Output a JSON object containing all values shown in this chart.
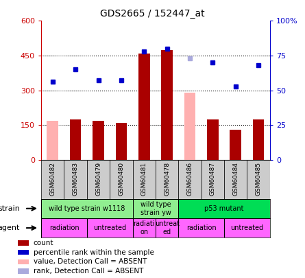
{
  "title": "GDS2665 / 152447_at",
  "samples": [
    "GSM60482",
    "GSM60483",
    "GSM60479",
    "GSM60480",
    "GSM60481",
    "GSM60478",
    "GSM60486",
    "GSM60487",
    "GSM60484",
    "GSM60485"
  ],
  "count_present": [
    null,
    175,
    168,
    160,
    460,
    475,
    null,
    175,
    130,
    175
  ],
  "count_absent": [
    168,
    null,
    null,
    null,
    null,
    null,
    290,
    null,
    null,
    null
  ],
  "rank_present": [
    56,
    65,
    57,
    57,
    78,
    80,
    null,
    70,
    53,
    68
  ],
  "rank_absent": [
    null,
    null,
    null,
    null,
    null,
    null,
    73,
    null,
    null,
    null
  ],
  "ylim_left": [
    0,
    600
  ],
  "ylim_right": [
    0,
    100
  ],
  "yticks_left": [
    0,
    150,
    300,
    450,
    600
  ],
  "yticks_right": [
    0,
    25,
    50,
    75,
    100
  ],
  "ytick_labels_left": [
    "0",
    "150",
    "300",
    "450",
    "600"
  ],
  "ytick_labels_right": [
    "0",
    "25",
    "50",
    "75",
    "100%"
  ],
  "hlines": [
    150,
    300,
    450
  ],
  "strain_groups": [
    {
      "label": "wild type strain w1118",
      "start": 0,
      "end": 4,
      "color": "#90EE90"
    },
    {
      "label": "wild type\nstrain yw",
      "start": 4,
      "end": 6,
      "color": "#90EE90"
    },
    {
      "label": "p53 mutant",
      "start": 6,
      "end": 10,
      "color": "#00DD55"
    }
  ],
  "agent_groups": [
    {
      "label": "radiation",
      "start": 0,
      "end": 2,
      "color": "#FF66FF"
    },
    {
      "label": "untreated",
      "start": 2,
      "end": 4,
      "color": "#FF66FF"
    },
    {
      "label": "radiati-\non",
      "start": 4,
      "end": 5,
      "color": "#FF66FF"
    },
    {
      "label": "untreat-\ned",
      "start": 5,
      "end": 6,
      "color": "#FF66FF"
    },
    {
      "label": "radiation",
      "start": 6,
      "end": 8,
      "color": "#FF66FF"
    },
    {
      "label": "untreated",
      "start": 8,
      "end": 10,
      "color": "#FF66FF"
    }
  ],
  "bar_color_present": "#AA0000",
  "bar_color_absent": "#FFB0B0",
  "dot_color_present": "#0000CC",
  "dot_color_absent": "#AAAADD",
  "tick_color_left": "#CC0000",
  "tick_color_right": "#0000CC",
  "sample_bg": "#CCCCCC",
  "legend_items": [
    {
      "color": "#AA0000",
      "label": "count"
    },
    {
      "color": "#0000CC",
      "label": "percentile rank within the sample"
    },
    {
      "color": "#FFB0B0",
      "label": "value, Detection Call = ABSENT"
    },
    {
      "color": "#AAAADD",
      "label": "rank, Detection Call = ABSENT"
    }
  ]
}
